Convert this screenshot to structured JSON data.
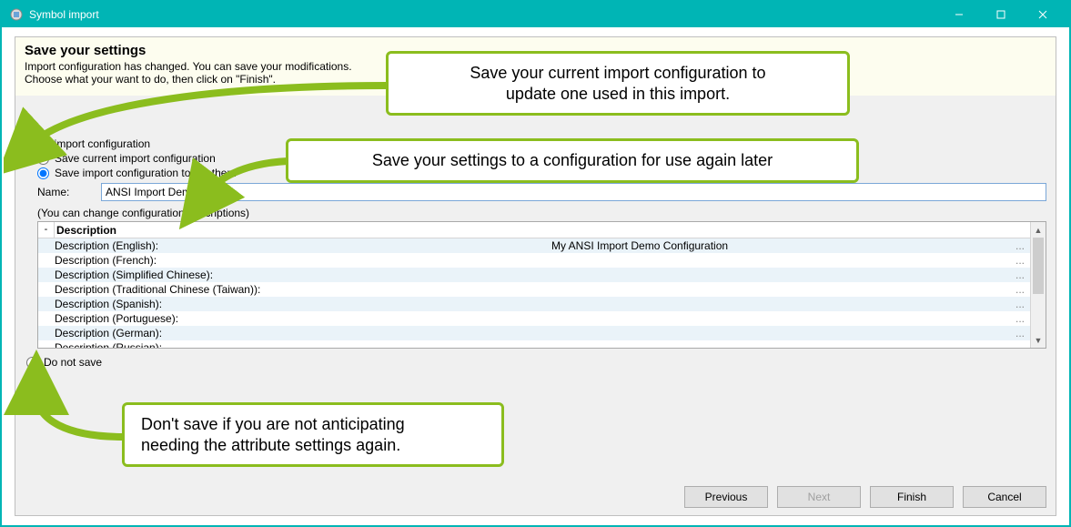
{
  "window": {
    "title": "Symbol import",
    "titlebar_color": "#00b5b5",
    "border_color": "#00b5b5"
  },
  "banner": {
    "heading": "Save your settings",
    "line1": "Import configuration has changed. You can save your modifications.",
    "line2": "Choose what your want to do, then click on \"Finish\".",
    "background": "#fdfdef"
  },
  "config": {
    "group_label": "Save import configuration",
    "radio_save_current": "Save current import configuration",
    "radio_save_another": "Save import configuration to another f",
    "selected": "another",
    "name_label": "Name:",
    "name_value": "ANSI Import Demo",
    "hint": "(You can change configuration descriptions)",
    "radio_do_not_save": "Do not save"
  },
  "desc_table": {
    "header": "Description",
    "expander": "-",
    "row_alt_bg": "#eaf3f9",
    "rows": [
      {
        "label": "Description (English):",
        "value": "My ANSI Import Demo Configuration",
        "dash": "..."
      },
      {
        "label": "Description (French):",
        "value": "",
        "dash": "..."
      },
      {
        "label": "Description (Simplified Chinese):",
        "value": "",
        "dash": "..."
      },
      {
        "label": "Description (Traditional Chinese (Taiwan)):",
        "value": "",
        "dash": "..."
      },
      {
        "label": "Description (Spanish):",
        "value": "",
        "dash": "..."
      },
      {
        "label": "Description (Portuguese):",
        "value": "",
        "dash": "..."
      },
      {
        "label": "Description (German):",
        "value": "",
        "dash": "..."
      },
      {
        "label": "Description (Russian):",
        "value": "",
        "dash": "..."
      }
    ]
  },
  "footer": {
    "previous": "Previous",
    "next": "Next",
    "finish": "Finish",
    "cancel": "Cancel",
    "next_disabled": true
  },
  "callouts": {
    "c1_line1": "Save your current import configuration to",
    "c1_line2": "update one used in this import.",
    "c2": "Save your settings to a configuration for use again later",
    "c3_line1": "Don't save if you are not anticipating",
    "c3_line2": "needing the attribute settings again.",
    "border_color": "#8bbd1e",
    "arrow_color": "#8bbd1e"
  },
  "colors": {
    "panel_bg": "#f0f0f0",
    "border_gray": "#bfbfbf",
    "input_border": "#7aa7d8"
  }
}
